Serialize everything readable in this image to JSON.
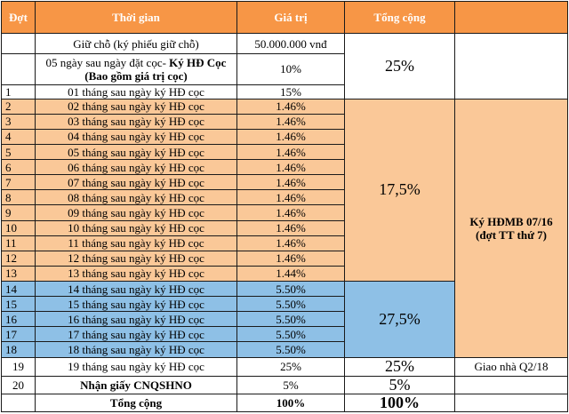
{
  "header": {
    "dot": "Đợt",
    "time": "Thời gian",
    "value": "Giá trị",
    "total": "Tổng cộng"
  },
  "rows": [
    {
      "dot": "",
      "time": "Giữ chỗ (ký phiếu giữ chỗ)",
      "value": "50.000.000 vnđ"
    },
    {
      "dot": "",
      "time_a": "05 ngày sau ngày đặt cọc- ",
      "time_b": "Ký HĐ Cọc",
      "time_c": "(Bao gồm giá trị cọc)",
      "value": "10%"
    },
    {
      "dot": "1",
      "time": "01 tháng sau ngày ký HĐ cọc",
      "value": "15%"
    },
    {
      "dot": "2",
      "time": "02 tháng sau ngày ký HĐ cọc",
      "value": "1.46%"
    },
    {
      "dot": "3",
      "time": "03 tháng sau ngày ký HĐ cọc",
      "value": "1.46%"
    },
    {
      "dot": "4",
      "time": "04 tháng sau ngày ký HĐ cọc",
      "value": "1.46%"
    },
    {
      "dot": "5",
      "time": "05 tháng sau ngày ký HĐ cọc",
      "value": "1.46%"
    },
    {
      "dot": "6",
      "time": "06 tháng sau ngày ký HĐ cọc",
      "value": "1.46%"
    },
    {
      "dot": "7",
      "time": "07 tháng sau ngày ký HĐ cọc",
      "value": "1.46%"
    },
    {
      "dot": "8",
      "time": "08 tháng sau ngày ký HĐ cọc",
      "value": "1.46%"
    },
    {
      "dot": "9",
      "time": "09 tháng sau ngày ký HĐ cọc",
      "value": "1.46%"
    },
    {
      "dot": "10",
      "time": "10 tháng sau ngày ký HĐ cọc",
      "value": "1.46%"
    },
    {
      "dot": "11",
      "time": "11 tháng sau ngày ký HĐ cọc",
      "value": "1.46%"
    },
    {
      "dot": "12",
      "time": "12 tháng sau ngày ký HĐ cọc",
      "value": "1.46%"
    },
    {
      "dot": "13",
      "time": "13 tháng sau ngày ký HĐ cọc",
      "value": "1.44%"
    },
    {
      "dot": "14",
      "time": "14 tháng sau ngày ký HĐ cọc",
      "value": "5.50%"
    },
    {
      "dot": "15",
      "time": "15 tháng sau ngày ký HĐ cọc",
      "value": "5.50%"
    },
    {
      "dot": "16",
      "time": "16 tháng sau ngày ký HĐ cọc",
      "value": "5.50%"
    },
    {
      "dot": "17",
      "time": "17 tháng sau ngày ký HĐ cọc",
      "value": "5.50%"
    },
    {
      "dot": "18",
      "time": "18 tháng sau ngày ký HĐ cọc",
      "value": "5.50%"
    },
    {
      "dot": "19",
      "time": "19 tháng sau ngày ký HĐ cọc",
      "value": "25%"
    },
    {
      "dot": "20",
      "time": "Nhận giấy CNQSHNO",
      "value": "5%"
    }
  ],
  "footer": {
    "label": "Tổng cộng",
    "value": "100%",
    "total": "100%"
  },
  "groups": {
    "g1": "25%",
    "g2": "17,5%",
    "g3": "27,5%",
    "g4": "25%",
    "g5": "5%"
  },
  "notes": {
    "hdmb_line1": "Ký HĐMB 07/16",
    "hdmb_line2": "(đợt TT thứ 7)",
    "handover": "Giao nhà Q2/18"
  },
  "colors": {
    "header": "#f79646",
    "peach": "#fac898",
    "blue": "#8ec0e6"
  }
}
